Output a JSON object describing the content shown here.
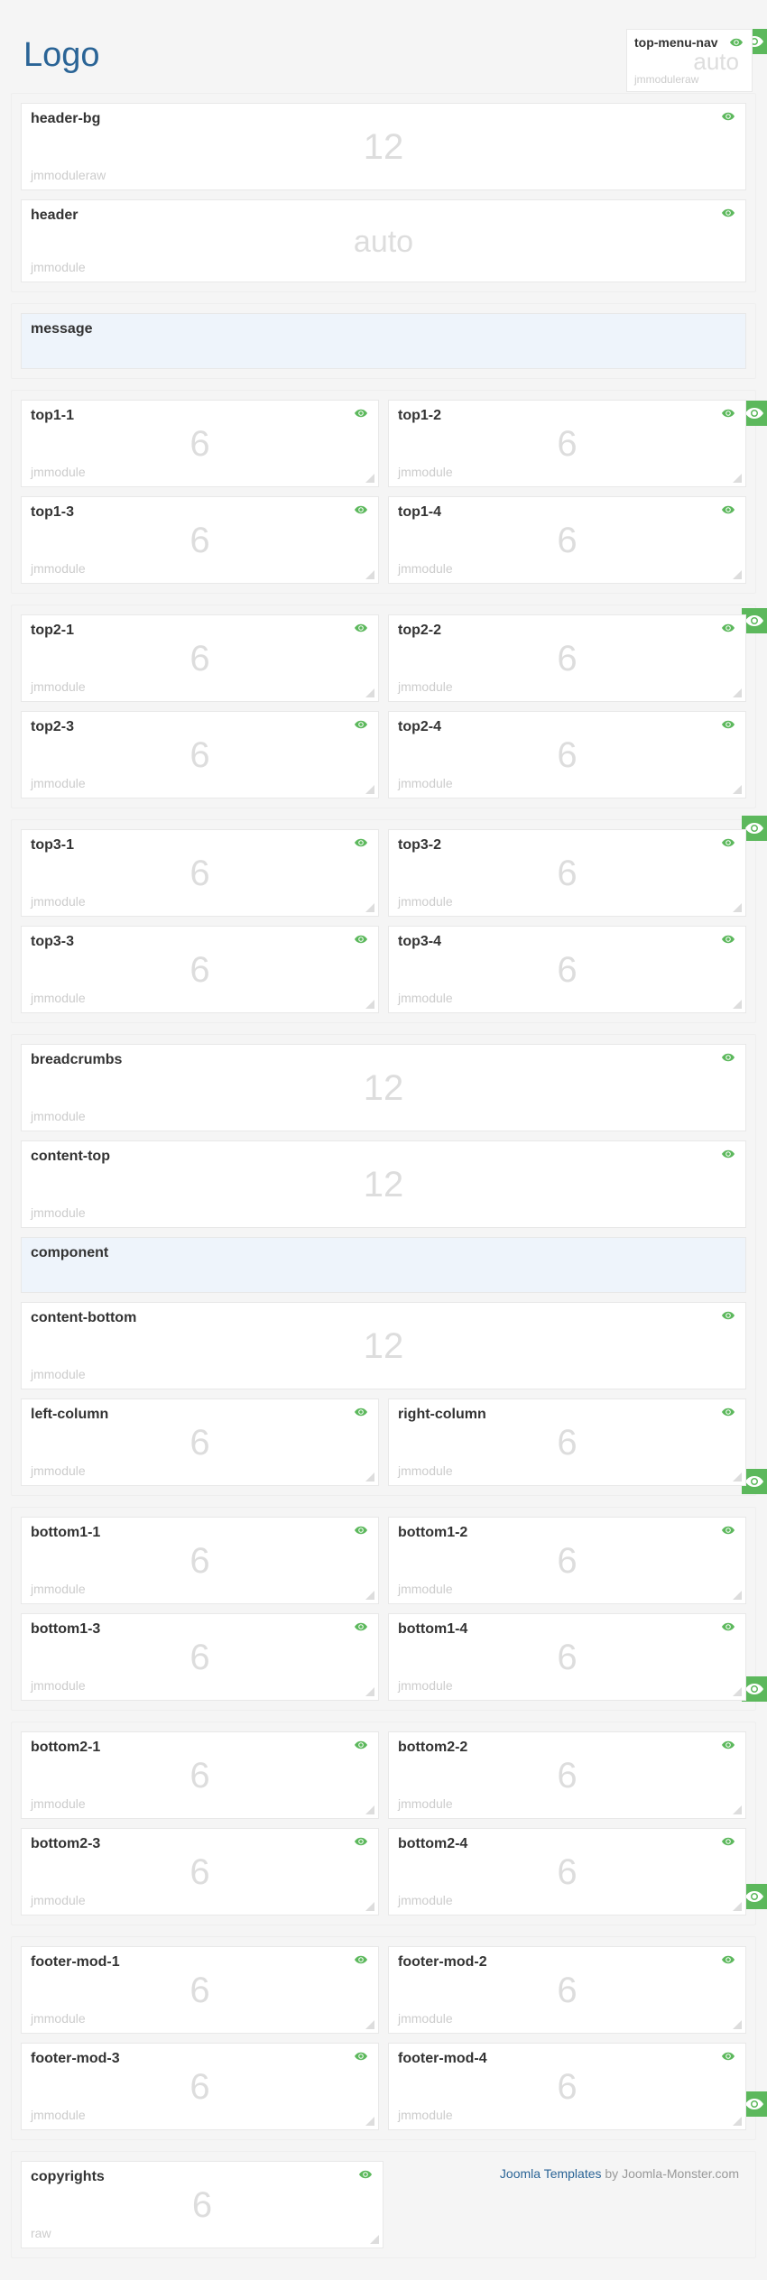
{
  "logo": "Logo",
  "topMenuNav": {
    "title": "top-menu-nav",
    "num": "auto",
    "tag": "jmmoduleraw"
  },
  "headerBg": {
    "title": "header-bg",
    "num": "12",
    "tag": "jmmoduleraw"
  },
  "header": {
    "title": "header",
    "num": "auto",
    "tag": "jmmodule"
  },
  "message": {
    "title": "message"
  },
  "top1": [
    {
      "title": "top1-1",
      "num": "6",
      "tag": "jmmodule"
    },
    {
      "title": "top1-2",
      "num": "6",
      "tag": "jmmodule"
    },
    {
      "title": "top1-3",
      "num": "6",
      "tag": "jmmodule"
    },
    {
      "title": "top1-4",
      "num": "6",
      "tag": "jmmodule"
    }
  ],
  "top2": [
    {
      "title": "top2-1",
      "num": "6",
      "tag": "jmmodule"
    },
    {
      "title": "top2-2",
      "num": "6",
      "tag": "jmmodule"
    },
    {
      "title": "top2-3",
      "num": "6",
      "tag": "jmmodule"
    },
    {
      "title": "top2-4",
      "num": "6",
      "tag": "jmmodule"
    }
  ],
  "top3": [
    {
      "title": "top3-1",
      "num": "6",
      "tag": "jmmodule"
    },
    {
      "title": "top3-2",
      "num": "6",
      "tag": "jmmodule"
    },
    {
      "title": "top3-3",
      "num": "6",
      "tag": "jmmodule"
    },
    {
      "title": "top3-4",
      "num": "6",
      "tag": "jmmodule"
    }
  ],
  "breadcrumbs": {
    "title": "breadcrumbs",
    "num": "12",
    "tag": "jmmodule"
  },
  "contentTop": {
    "title": "content-top",
    "num": "12",
    "tag": "jmmodule"
  },
  "component": {
    "title": "component"
  },
  "contentBottom": {
    "title": "content-bottom",
    "num": "12",
    "tag": "jmmodule"
  },
  "leftColumn": {
    "title": "left-column",
    "num": "6",
    "tag": "jmmodule"
  },
  "rightColumn": {
    "title": "right-column",
    "num": "6",
    "tag": "jmmodule"
  },
  "bottom1": [
    {
      "title": "bottom1-1",
      "num": "6",
      "tag": "jmmodule"
    },
    {
      "title": "bottom1-2",
      "num": "6",
      "tag": "jmmodule"
    },
    {
      "title": "bottom1-3",
      "num": "6",
      "tag": "jmmodule"
    },
    {
      "title": "bottom1-4",
      "num": "6",
      "tag": "jmmodule"
    }
  ],
  "bottom2": [
    {
      "title": "bottom2-1",
      "num": "6",
      "tag": "jmmodule"
    },
    {
      "title": "bottom2-2",
      "num": "6",
      "tag": "jmmodule"
    },
    {
      "title": "bottom2-3",
      "num": "6",
      "tag": "jmmodule"
    },
    {
      "title": "bottom2-4",
      "num": "6",
      "tag": "jmmodule"
    }
  ],
  "footerMod": [
    {
      "title": "footer-mod-1",
      "num": "6",
      "tag": "jmmodule"
    },
    {
      "title": "footer-mod-2",
      "num": "6",
      "tag": "jmmodule"
    },
    {
      "title": "footer-mod-3",
      "num": "6",
      "tag": "jmmodule"
    },
    {
      "title": "footer-mod-4",
      "num": "6",
      "tag": "jmmodule"
    }
  ],
  "copyrights": {
    "title": "copyrights",
    "num": "6",
    "tag": "raw"
  },
  "credit": {
    "link": "Joomla Templates",
    "by": " by Joomla-Monster.com"
  },
  "colors": {
    "green": "#5cb85c",
    "bg": "#f5f5f5",
    "blue": "#2a6496",
    "lightblue": "#eef4fb"
  }
}
